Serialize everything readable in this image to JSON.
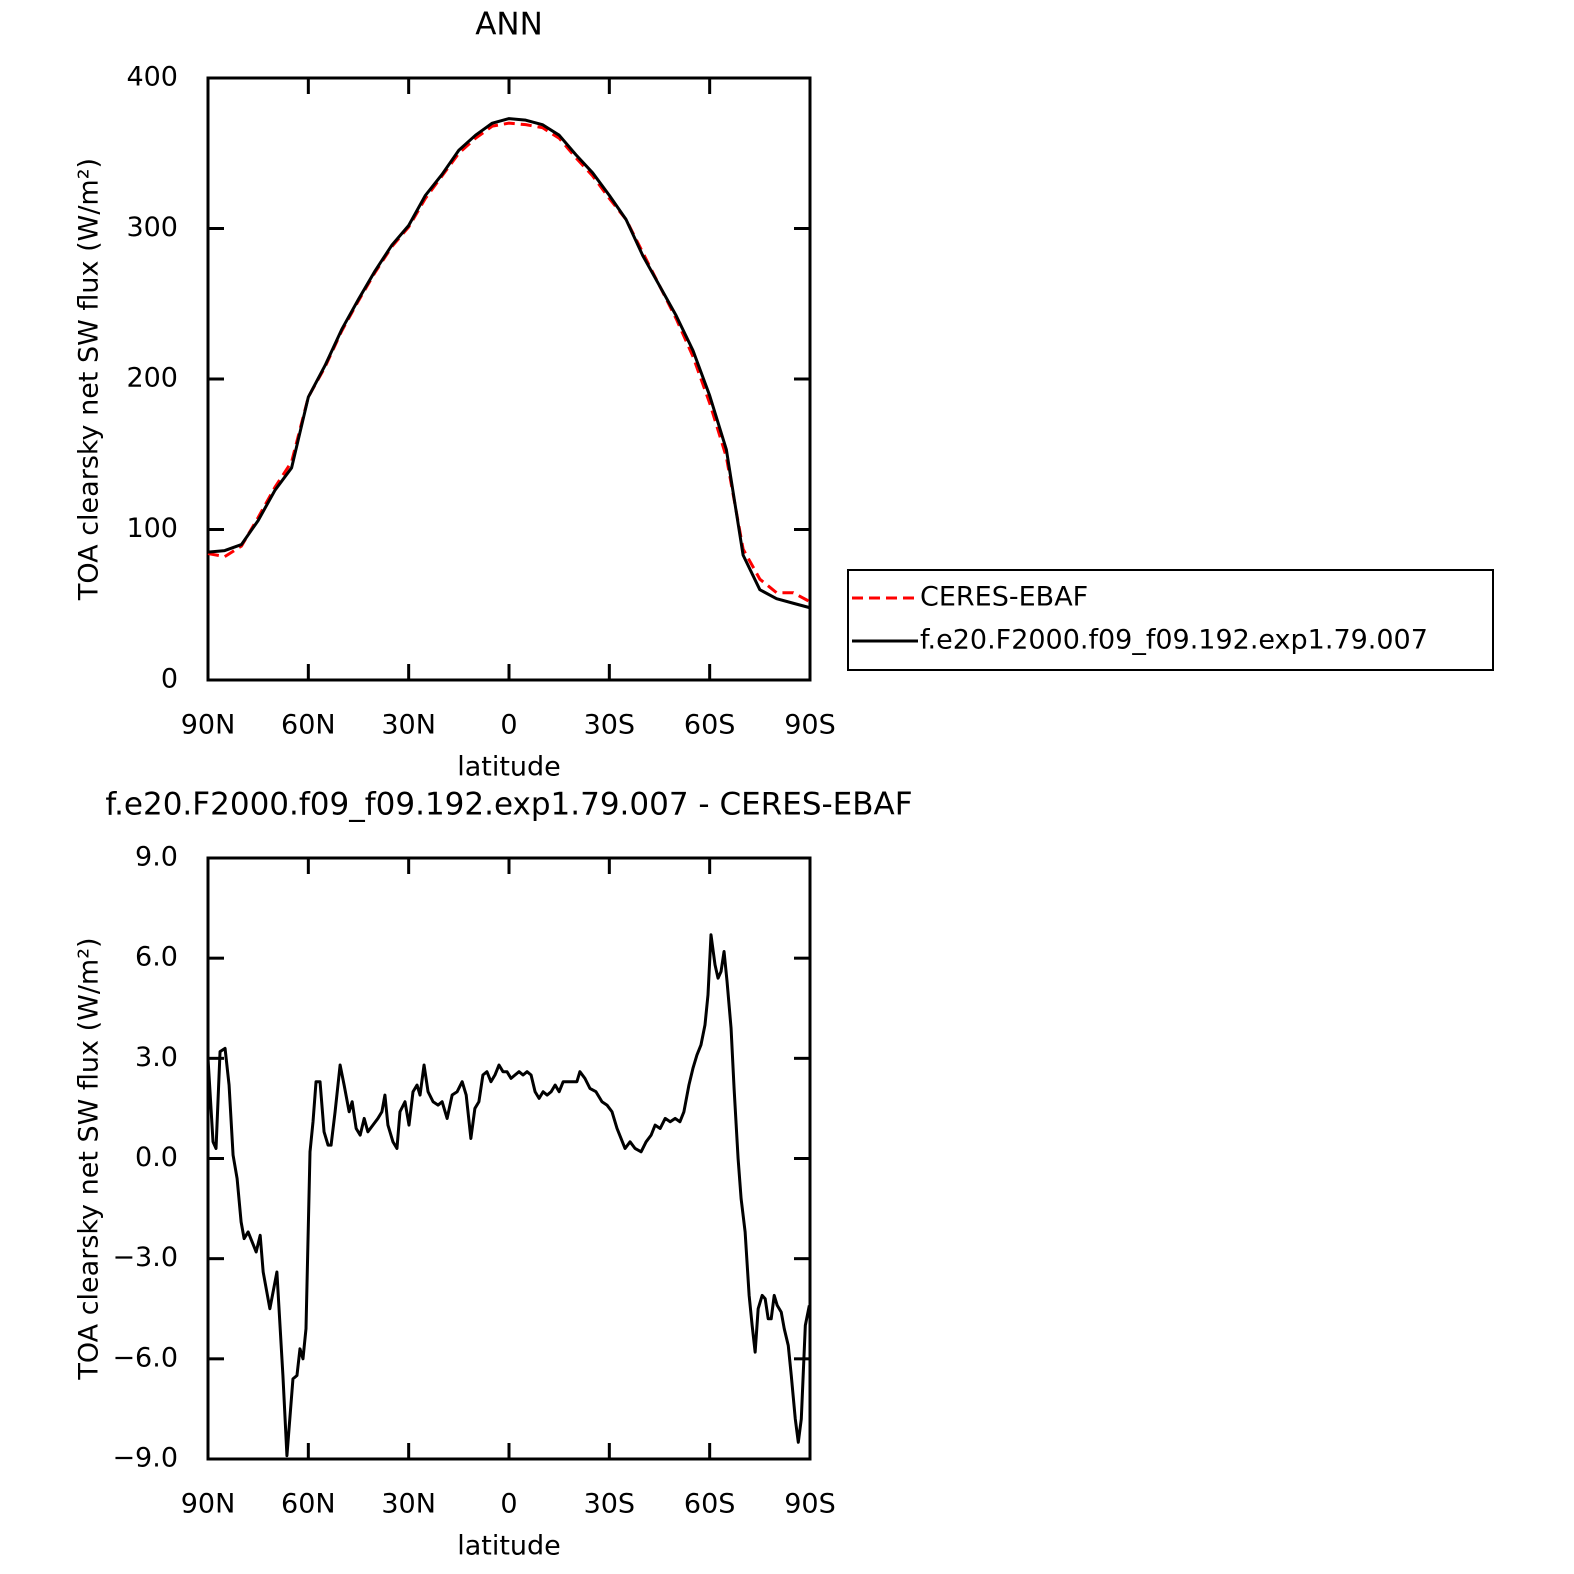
{
  "chart_data": [
    {
      "type": "line",
      "title": "ANN",
      "x_label": "latitude",
      "y_label": "TOA clearsky net SW flux (W/m²)",
      "x": [
        90,
        85,
        80,
        75,
        70,
        65,
        60,
        55,
        50,
        45,
        40,
        35,
        30,
        25,
        20,
        15,
        10,
        5,
        0,
        -5,
        -10,
        -15,
        -20,
        -25,
        -30,
        -35,
        -40,
        -45,
        -50,
        -55,
        -60,
        -65,
        -70,
        -75,
        -80,
        -85,
        -90
      ],
      "series": [
        {
          "name": "CERES-EBAF",
          "color": "#ff0000",
          "dashed": true,
          "values": [
            84,
            82,
            89,
            108,
            128,
            145,
            188,
            208,
            232,
            252,
            271,
            288,
            301,
            320,
            335,
            350,
            360,
            368,
            370,
            369,
            367,
            360,
            347,
            335,
            320,
            306,
            284,
            262,
            240,
            215,
            184,
            148,
            87,
            67,
            58,
            58,
            52
          ]
        },
        {
          "name": "f.e20.F2000.f09_f09.192.exp1.79.007",
          "color": "#000000",
          "values": [
            85,
            86,
            90,
            106,
            126,
            141,
            188,
            209,
            233,
            253,
            272,
            289,
            302,
            322,
            336,
            352,
            362,
            370,
            373,
            372,
            369,
            362,
            349,
            337,
            322,
            306,
            282,
            262,
            242,
            219,
            189,
            153,
            83,
            60,
            54,
            51,
            48
          ]
        }
      ],
      "xlim": [
        90,
        -90
      ],
      "xticks": [
        {
          "value": 90,
          "label": "90N"
        },
        {
          "value": 60,
          "label": "60N"
        },
        {
          "value": 30,
          "label": "30N"
        },
        0,
        {
          "value": -30,
          "label": "30S"
        },
        {
          "value": -60,
          "label": "60S"
        },
        {
          "value": -90,
          "label": "90S"
        }
      ],
      "ylim": [
        0,
        400
      ],
      "yticks": [
        0,
        100,
        200,
        300,
        400
      ],
      "legend": "right"
    },
    {
      "type": "line",
      "title": "f.e20.F2000.f09_f09.192.exp1.79.007 - CERES-EBAF",
      "x_label": "latitude",
      "y_label": "TOA clearsky net SW flux (W/m²)",
      "x": [
        90,
        88.5,
        87.6,
        86.4,
        84.9,
        83.7,
        82.5,
        81.3,
        80.1,
        79.2,
        78,
        76.8,
        75.6,
        74.4,
        73.5,
        71.5,
        69.4,
        67.6,
        66.4,
        64.6,
        63.4,
        62.5,
        61.6,
        60.7,
        59.5,
        58.6,
        57.7,
        56.5,
        55.3,
        54.1,
        53.2,
        52,
        50.5,
        49.3,
        47.8,
        46.9,
        45.7,
        44.5,
        43.3,
        42.2,
        40.7,
        39.2,
        38,
        37.1,
        36.2,
        34.7,
        33.5,
        32.6,
        31.1,
        29.9,
        28.7,
        27.5,
        26.6,
        25.4,
        24.2,
        22.7,
        21.2,
        20,
        18.5,
        17,
        15.5,
        14,
        12.8,
        11.4,
        10.2,
        9,
        7.8,
        6.6,
        5.4,
        4.2,
        3,
        1.8,
        0.6,
        -0.6,
        -1.8,
        -3,
        -4.2,
        -5.4,
        -6.6,
        -7.8,
        -9,
        -10.2,
        -11.4,
        -12.6,
        -13.8,
        -15,
        -16.2,
        -17.4,
        -18.9,
        -20.3,
        -21.2,
        -22.7,
        -24.2,
        -26,
        -27.8,
        -29.3,
        -30.8,
        -32.3,
        -33.5,
        -34.7,
        -36.2,
        -37.7,
        -39.5,
        -41,
        -42.5,
        -43.7,
        -45.2,
        -46.7,
        -48.2,
        -49.7,
        -51.1,
        -52.3,
        -53.8,
        -55,
        -56.2,
        -57.4,
        -58.6,
        -59.5,
        -60.4,
        -61.6,
        -62.5,
        -63.4,
        -64.3,
        -65.2,
        -66.4,
        -67.3,
        -68.5,
        -69.4,
        -70.6,
        -71.8,
        -72.7,
        -73.6,
        -74.5,
        -75.7,
        -76.6,
        -77.5,
        -78.4,
        -79.3,
        -80.2,
        -81.4,
        -82.3,
        -83.5,
        -84.4,
        -85.6,
        -86.5,
        -87.4,
        -88.6,
        -89.8
      ],
      "series": [
        {
          "color": "#000000",
          "values": [
            3.0,
            0.5,
            0.3,
            3.2,
            3.3,
            2.2,
            0.1,
            -0.6,
            -1.9,
            -2.4,
            -2.2,
            -2.5,
            -2.8,
            -2.3,
            -3.4,
            -4.5,
            -3.4,
            -6.5,
            -8.9,
            -6.6,
            -6.5,
            -5.7,
            -6.0,
            -5.1,
            0.2,
            1.1,
            2.3,
            2.3,
            0.8,
            0.4,
            0.4,
            1.4,
            2.8,
            2.2,
            1.4,
            1.7,
            0.9,
            0.7,
            1.2,
            0.8,
            1.0,
            1.2,
            1.4,
            1.9,
            1.0,
            0.5,
            0.3,
            1.4,
            1.7,
            1.0,
            2.0,
            2.2,
            1.9,
            2.8,
            2.0,
            1.7,
            1.6,
            1.7,
            1.2,
            1.9,
            2.0,
            2.3,
            1.9,
            0.6,
            1.5,
            1.7,
            2.5,
            2.6,
            2.3,
            2.5,
            2.8,
            2.6,
            2.6,
            2.4,
            2.5,
            2.6,
            2.5,
            2.6,
            2.5,
            2.0,
            1.8,
            2.0,
            1.9,
            2.0,
            2.2,
            2.0,
            2.3,
            2.3,
            2.3,
            2.3,
            2.6,
            2.4,
            2.1,
            2.0,
            1.7,
            1.6,
            1.4,
            0.9,
            0.6,
            0.3,
            0.5,
            0.3,
            0.2,
            0.5,
            0.7,
            1.0,
            0.9,
            1.2,
            1.1,
            1.2,
            1.1,
            1.4,
            2.2,
            2.7,
            3.1,
            3.4,
            4.0,
            4.9,
            6.7,
            5.8,
            5.4,
            5.6,
            6.2,
            5.3,
            3.9,
            2.1,
            0.0,
            -1.2,
            -2.2,
            -4.1,
            -5.0,
            -5.8,
            -4.5,
            -4.1,
            -4.2,
            -4.8,
            -4.8,
            -4.1,
            -4.4,
            -4.6,
            -5.1,
            -5.6,
            -6.5,
            -7.8,
            -8.5,
            -7.8,
            -5.0,
            -4.4
          ]
        }
      ],
      "xlim": [
        90,
        -90
      ],
      "xticks": [
        {
          "value": 90,
          "label": "90N"
        },
        {
          "value": 60,
          "label": "60N"
        },
        {
          "value": 30,
          "label": "30N"
        },
        0,
        {
          "value": -30,
          "label": "30S"
        },
        {
          "value": -60,
          "label": "60S"
        },
        {
          "value": -90,
          "label": "90S"
        }
      ],
      "ylim": [
        -9,
        9
      ],
      "yticks": [
        {
          "value": -9,
          "label": "−9.0"
        },
        {
          "value": -6,
          "label": "−6.0"
        },
        {
          "value": -3,
          "label": "−3.0"
        },
        {
          "value": 0,
          "label": "0.0"
        },
        {
          "value": 3,
          "label": "3.0"
        },
        {
          "value": 6,
          "label": "6.0"
        },
        {
          "value": 9,
          "label": "9.0"
        }
      ]
    }
  ]
}
